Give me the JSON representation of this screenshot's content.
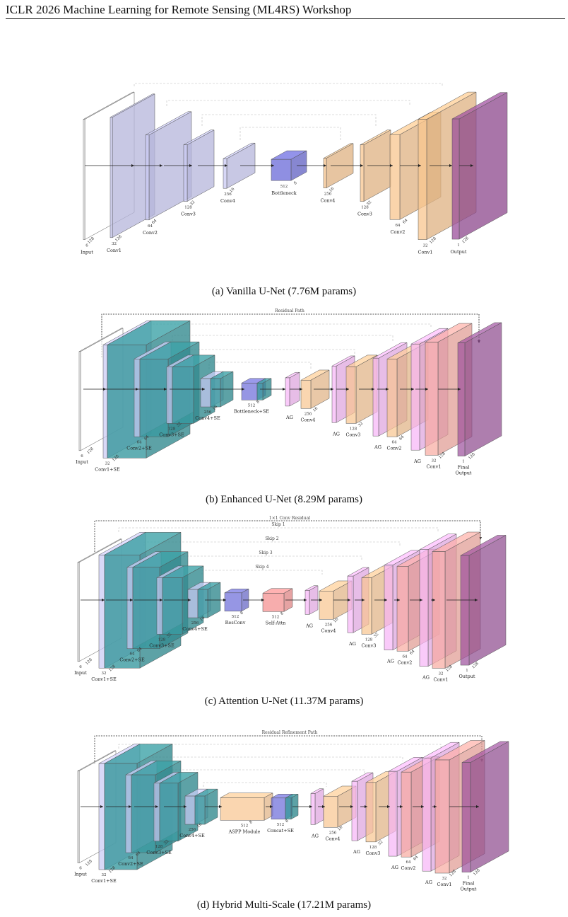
{
  "header": {
    "title": "ICLR 2026 Machine Learning for Remote Sensing (ML4RS) Workshop"
  },
  "panels": [
    {
      "caption": "(a) Vanilla U-Net (7.76M params)",
      "blocks": [
        {
          "label": "Input",
          "dims": [
            "6",
            "128"
          ]
        },
        {
          "label": "Conv1",
          "dims": [
            "32",
            "128"
          ]
        },
        {
          "label": "Conv2",
          "dims": [
            "64",
            "64"
          ]
        },
        {
          "label": "Conv3",
          "dims": [
            "128",
            "32"
          ]
        },
        {
          "label": "Conv4",
          "dims": [
            "256",
            "16"
          ]
        },
        {
          "label": "Bottleneck",
          "dims": [
            "512",
            "8"
          ]
        },
        {
          "label": "Conv4",
          "dims": [
            "256",
            "16"
          ]
        },
        {
          "label": "Conv3",
          "dims": [
            "128",
            "32"
          ]
        },
        {
          "label": "Conv2",
          "dims": [
            "64",
            "64"
          ]
        },
        {
          "label": "Conv1",
          "dims": [
            "32",
            "128"
          ]
        },
        {
          "label": "Output",
          "dims": [
            "1",
            "128"
          ]
        }
      ]
    },
    {
      "caption": "(b) Enhanced U-Net (8.29M params)",
      "path_label": "Residual Path",
      "blocks": [
        {
          "label": "Input",
          "dims": [
            "6",
            "128"
          ]
        },
        {
          "label": "Conv1+SE",
          "dims": [
            "32",
            "128"
          ]
        },
        {
          "label": "Conv2+SE",
          "dims": [
            "64",
            "64"
          ]
        },
        {
          "label": "Conv3+SE",
          "dims": [
            "128",
            "32"
          ]
        },
        {
          "label": "Conv4+SE",
          "dims": [
            "256",
            "16"
          ]
        },
        {
          "label": "Bottleneck+SE",
          "dims": [
            "512",
            "8"
          ]
        },
        {
          "label": "AG",
          "dims": [
            "",
            ""
          ]
        },
        {
          "label": "Conv4",
          "dims": [
            "256",
            "16"
          ]
        },
        {
          "label": "AG",
          "dims": [
            "",
            ""
          ]
        },
        {
          "label": "Conv3",
          "dims": [
            "128",
            "32"
          ]
        },
        {
          "label": "AG",
          "dims": [
            "",
            ""
          ]
        },
        {
          "label": "Conv2",
          "dims": [
            "64",
            "64"
          ]
        },
        {
          "label": "AG",
          "dims": [
            "",
            ""
          ]
        },
        {
          "label": "Conv1",
          "dims": [
            "32",
            "128"
          ]
        },
        {
          "label": "Final Output",
          "dims": [
            "1",
            "128"
          ]
        }
      ]
    },
    {
      "caption": "(c) Attention U-Net (11.37M params)",
      "path_label": "1×1 Conv Residual",
      "skip_labels": [
        "Skip 1",
        "Skip 2",
        "Skip 3",
        "Skip 4"
      ],
      "blocks": [
        {
          "label": "Input",
          "dims": [
            "6",
            "128"
          ]
        },
        {
          "label": "Conv1+SE",
          "dims": [
            "32",
            "128"
          ]
        },
        {
          "label": "Conv2+SE",
          "dims": [
            "64",
            "64"
          ]
        },
        {
          "label": "Conv3+SE",
          "dims": [
            "128",
            "32"
          ]
        },
        {
          "label": "Conv4+SE",
          "dims": [
            "256",
            "16"
          ]
        },
        {
          "label": "ResConv",
          "dims": [
            "512",
            "8"
          ]
        },
        {
          "label": "Self-Attn",
          "dims": [
            "512",
            "8"
          ]
        },
        {
          "label": "AG",
          "dims": [
            "",
            ""
          ]
        },
        {
          "label": "Conv4",
          "dims": [
            "256",
            "16"
          ]
        },
        {
          "label": "AG",
          "dims": [
            "",
            ""
          ]
        },
        {
          "label": "Conv3",
          "dims": [
            "128",
            "32"
          ]
        },
        {
          "label": "AG",
          "dims": [
            "",
            ""
          ]
        },
        {
          "label": "Conv2",
          "dims": [
            "64",
            "64"
          ]
        },
        {
          "label": "AG",
          "dims": [
            "",
            ""
          ]
        },
        {
          "label": "Conv1",
          "dims": [
            "32",
            "128"
          ]
        },
        {
          "label": "Output",
          "dims": [
            "1",
            "128"
          ]
        }
      ]
    },
    {
      "caption": "(d) Hybrid Multi-Scale (17.21M params)",
      "path_label": "Residual Refinement Path",
      "blocks": [
        {
          "label": "Input",
          "dims": [
            "6",
            "128"
          ]
        },
        {
          "label": "Conv1+SE",
          "dims": [
            "32",
            "128"
          ]
        },
        {
          "label": "Conv2+SE",
          "dims": [
            "64",
            "64"
          ]
        },
        {
          "label": "Conv3+SE",
          "dims": [
            "128",
            "32"
          ]
        },
        {
          "label": "Conv4+SE",
          "dims": [
            "256",
            "16"
          ]
        },
        {
          "label": "ASPP Module",
          "dims": [
            "512",
            "8"
          ]
        },
        {
          "label": "Concat+SE",
          "dims": [
            "512",
            "8"
          ]
        },
        {
          "label": "AG",
          "dims": [
            "",
            ""
          ]
        },
        {
          "label": "Conv4",
          "dims": [
            "256",
            "16"
          ]
        },
        {
          "label": "AG",
          "dims": [
            "",
            ""
          ]
        },
        {
          "label": "Conv3",
          "dims": [
            "128",
            "32"
          ]
        },
        {
          "label": "AG",
          "dims": [
            "",
            ""
          ]
        },
        {
          "label": "Conv2",
          "dims": [
            "64",
            "64"
          ]
        },
        {
          "label": "AG",
          "dims": [
            "",
            ""
          ]
        },
        {
          "label": "Conv1",
          "dims": [
            "32",
            "128"
          ]
        },
        {
          "label": "Final Output",
          "dims": [
            "1",
            "128"
          ]
        }
      ]
    }
  ],
  "colors": {
    "white": "#ffffff",
    "lavender": "#c9c9f3",
    "teal": "#3a9aa0",
    "blue": "#6a6ad8",
    "orange": "#f8c58f",
    "purple": "#9b4f9b",
    "pink": "#f6b3f6",
    "salmon": "#f8a9a0",
    "red": "#f48a8a"
  }
}
